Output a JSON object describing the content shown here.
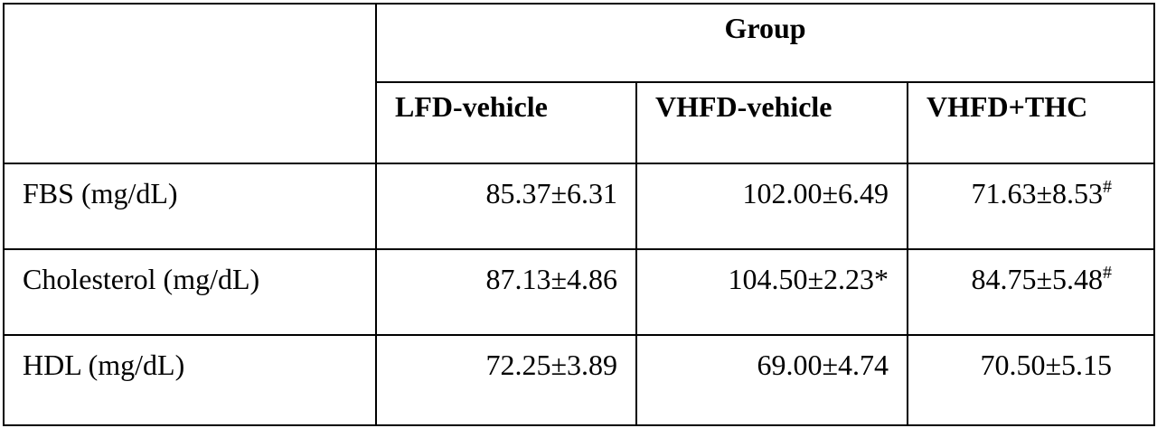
{
  "table": {
    "group_header": "Group",
    "columns": [
      "LFD-vehicle",
      "VHFD-vehicle",
      "VHFD+THC"
    ],
    "rows": [
      {
        "label": "FBS (mg/dL)",
        "cells": [
          {
            "text": "85.37±6.31"
          },
          {
            "text": "102.00±6.49"
          },
          {
            "text": "71.63±8.53",
            "sup": "#"
          }
        ]
      },
      {
        "label": "Cholesterol (mg/dL)",
        "cells": [
          {
            "text": "87.13±4.86"
          },
          {
            "text": "104.50±2.23*"
          },
          {
            "text": "84.75±5.48",
            "sup": "#"
          }
        ]
      },
      {
        "label": "HDL (mg/dL)",
        "cells": [
          {
            "text": "72.25±3.89"
          },
          {
            "text": "69.00±4.74"
          },
          {
            "text": "70.50±5.15"
          }
        ]
      }
    ]
  }
}
